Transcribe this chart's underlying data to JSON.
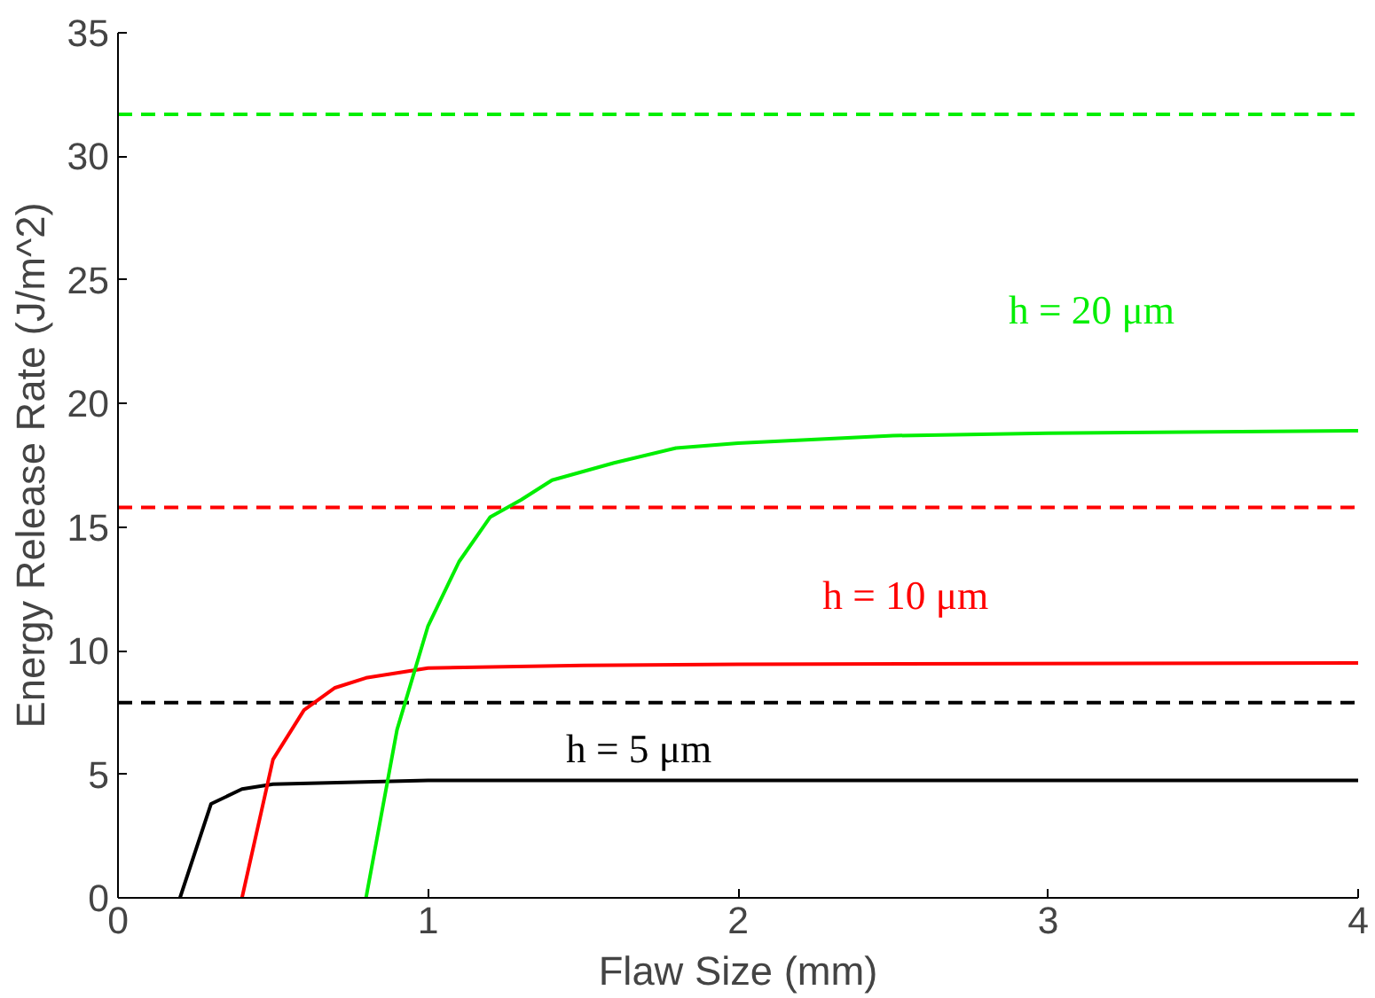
{
  "chart_data": {
    "type": "line",
    "xlabel": "Flaw Size (mm)",
    "ylabel": "Energy Release Rate (J/m^2)",
    "xlim": [
      0,
      4
    ],
    "xticks": [
      0,
      1,
      2,
      3,
      4
    ],
    "ylim": [
      0,
      35
    ],
    "yticks": [
      0,
      5,
      10,
      15,
      20,
      25,
      30,
      35
    ],
    "grid": false,
    "marker": "none",
    "line_style": "solid",
    "series": [
      {
        "color": "#000000",
        "x": [
          0.2,
          0.3,
          0.4,
          0.5,
          1.0,
          2.0,
          4.0
        ],
        "values": [
          0,
          3.8,
          4.4,
          4.6,
          4.75,
          4.75,
          4.75
        ]
      },
      {
        "color": "#ff0000",
        "x": [
          0.4,
          0.5,
          0.6,
          0.7,
          0.8,
          1.0,
          1.5,
          2.0,
          4.0
        ],
        "values": [
          0,
          5.6,
          7.6,
          8.5,
          8.9,
          9.3,
          9.4,
          9.45,
          9.5
        ]
      },
      {
        "color": "#00ee00",
        "x": [
          0.8,
          0.9,
          1.0,
          1.1,
          1.2,
          1.3,
          1.4,
          1.6,
          1.8,
          2.0,
          2.5,
          3.0,
          4.0
        ],
        "values": [
          0,
          6.8,
          11.0,
          13.6,
          15.4,
          16.1,
          16.9,
          17.6,
          18.2,
          18.4,
          18.7,
          18.8,
          18.9
        ]
      }
    ],
    "ref_lines": [
      {
        "axis": "y",
        "value": 7.9,
        "color": "#000000",
        "line_style": "dashed"
      },
      {
        "axis": "y",
        "value": 15.8,
        "color": "#ff0000",
        "line_style": "dashed"
      },
      {
        "axis": "y",
        "value": 31.7,
        "color": "#00ee00",
        "line_style": "dashed"
      }
    ],
    "annotations": [
      "h = 5 μm",
      "h = 10 μm",
      "h = 20 μm"
    ]
  }
}
